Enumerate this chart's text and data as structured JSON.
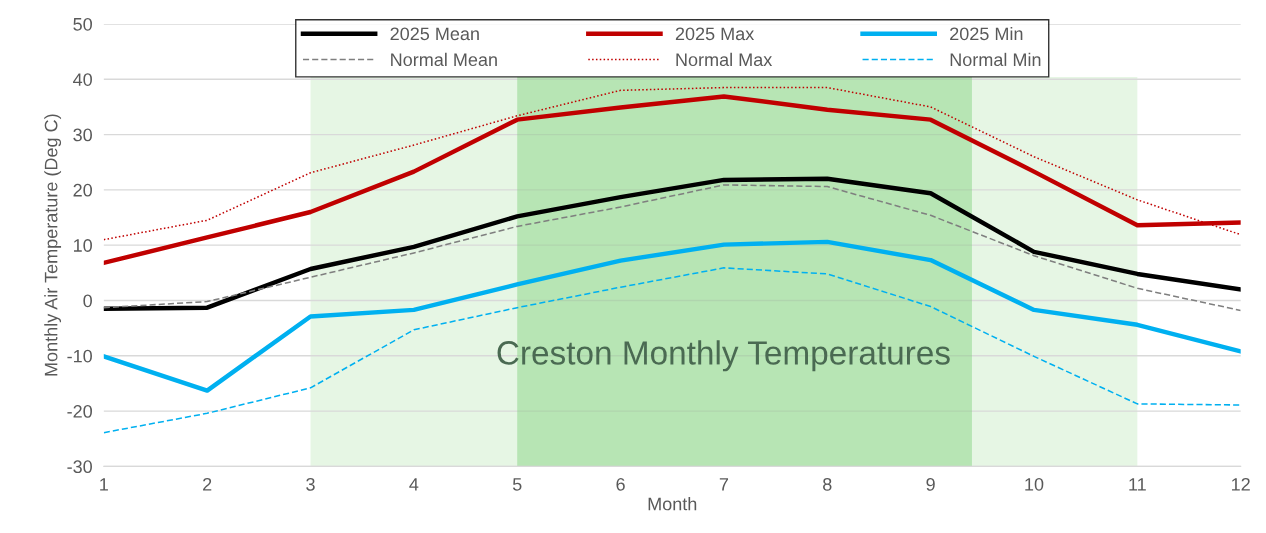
{
  "chart_data": {
    "type": "line",
    "title": "Creston Monthly Temperatures",
    "xlabel": "Month",
    "ylabel": "Monthly Air Temperature (Deg C)",
    "x": [
      1,
      2,
      3,
      4,
      5,
      6,
      7,
      8,
      9,
      10,
      11,
      12
    ],
    "xlim": [
      1,
      12
    ],
    "xticks": [
      1,
      2,
      3,
      4,
      5,
      6,
      7,
      8,
      9,
      10,
      11,
      12
    ],
    "ylim": [
      -30,
      50
    ],
    "yticks": [
      -30,
      -20,
      -10,
      0,
      10,
      20,
      30,
      40,
      50
    ],
    "grid": "y",
    "legend": "top",
    "marker": "none",
    "series": [
      {
        "name": "2025 Mean",
        "color": "#000000",
        "line_style": "solid",
        "values": [
          -1.5,
          -1.3,
          5.7,
          9.7,
          15.2,
          18.7,
          21.8,
          22.0,
          19.4,
          8.8,
          4.8,
          2.0
        ]
      },
      {
        "name": "2025 Max",
        "color": "#c00000",
        "line_style": "solid",
        "values": [
          6.8,
          11.4,
          16.0,
          23.3,
          32.7,
          34.9,
          36.9,
          34.5,
          32.7,
          23.3,
          13.6,
          14.1
        ]
      },
      {
        "name": "2025 Min",
        "color": "#00b0f0",
        "line_style": "solid",
        "values": [
          -10.1,
          -16.3,
          -2.9,
          -1.7,
          2.9,
          7.2,
          10.1,
          10.6,
          7.3,
          -1.7,
          -4.4,
          -9.2
        ]
      },
      {
        "name": "Normal Mean",
        "color": "#7f7f7f",
        "line_style": "dashed",
        "values": [
          -1.3,
          -0.2,
          4.2,
          8.6,
          13.4,
          16.9,
          20.9,
          20.6,
          15.4,
          8.1,
          2.2,
          -1.8
        ]
      },
      {
        "name": "Normal Max",
        "color": "#c00000",
        "line_style": "dotted",
        "values": [
          11.0,
          14.5,
          23.1,
          28.1,
          33.4,
          38.0,
          38.5,
          38.5,
          35.0,
          26.0,
          18.2,
          11.9
        ]
      },
      {
        "name": "Normal Min",
        "color": "#00b0f0",
        "line_style": "dashed",
        "values": [
          -23.9,
          -20.4,
          -15.8,
          -5.3,
          -1.3,
          2.4,
          5.9,
          4.8,
          -1.1,
          -10.1,
          -18.7,
          -18.9
        ]
      }
    ],
    "bands": [
      {
        "axis": "x",
        "from": 3,
        "to": 11,
        "color": "#c8ecc4"
      },
      {
        "axis": "x",
        "from": 5,
        "to": 9.4,
        "color": "#7fd07a"
      }
    ]
  }
}
